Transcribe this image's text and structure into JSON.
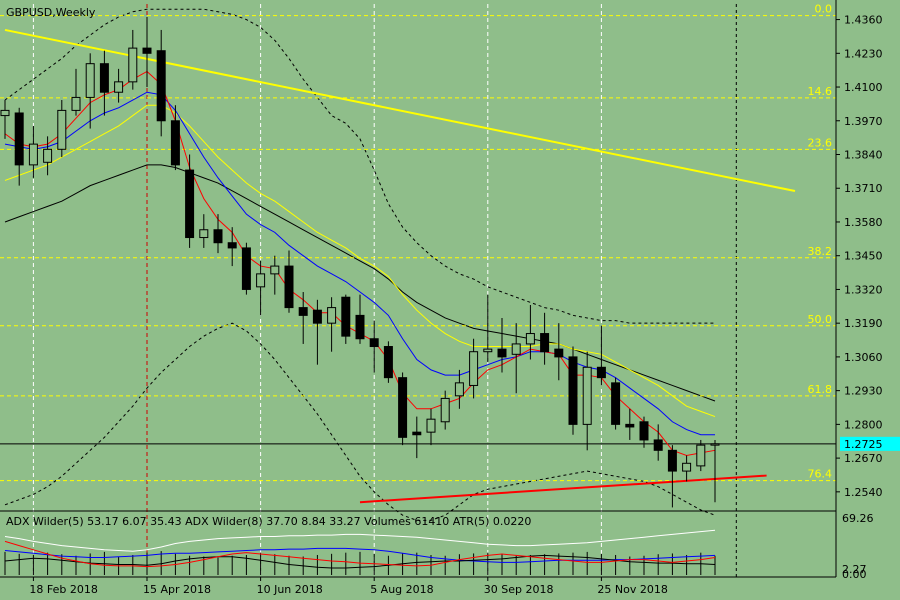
{
  "chart_data": {
    "type": "candlestick",
    "title": "GBPUSD,Weekly",
    "colors": {
      "background": "#8fbe8a",
      "bull_candle": "#8fbe8a",
      "bear_candle": "#000000",
      "ma_fast": "#ff0000",
      "ma_mid": "#0000ff",
      "ma_slow": "#ffff00",
      "bands": "#000000",
      "trendline_top": "#ffff00",
      "trendline_bottom": "#ff0000",
      "fib_lines": "#ffff00",
      "current_price": "#00ffff"
    },
    "ylim": [
      1.247,
      1.442
    ],
    "y_ticks": [
      "1.4360",
      "1.4230",
      "1.4100",
      "1.3970",
      "1.3840",
      "1.3710",
      "1.3580",
      "1.3450",
      "1.3320",
      "1.3190",
      "1.3060",
      "1.2930",
      "1.2800",
      "1.2670",
      "1.2540"
    ],
    "current_price": 1.2725,
    "current_price_label": "1.2725",
    "fib_levels": [
      {
        "label": "0.0",
        "price": 1.4375
      },
      {
        "label": "14.6",
        "price": 1.4058
      },
      {
        "label": "23.6",
        "price": 1.386
      },
      {
        "label": "38.2",
        "price": 1.3442
      },
      {
        "label": "50.0",
        "price": 1.318
      },
      {
        "label": "61.8",
        "price": 1.291
      },
      {
        "label": "76.4",
        "price": 1.2583
      }
    ],
    "x_labels": [
      {
        "label": "18 Feb 2018",
        "week": 1
      },
      {
        "label": "15 Apr 2018",
        "week": 9
      },
      {
        "label": "10 Jun 2018",
        "week": 17
      },
      {
        "label": "5 Aug 2018",
        "week": 25
      },
      {
        "label": "30 Sep 2018",
        "week": 33
      },
      {
        "label": "25 Nov 2018",
        "week": 41
      }
    ],
    "candles": [
      {
        "o": 1.399,
        "h": 1.405,
        "l": 1.39,
        "c": 1.401
      },
      {
        "o": 1.4,
        "h": 1.402,
        "l": 1.372,
        "c": 1.38
      },
      {
        "o": 1.38,
        "h": 1.395,
        "l": 1.375,
        "c": 1.388
      },
      {
        "o": 1.381,
        "h": 1.391,
        "l": 1.376,
        "c": 1.386
      },
      {
        "o": 1.386,
        "h": 1.405,
        "l": 1.383,
        "c": 1.401
      },
      {
        "o": 1.401,
        "h": 1.417,
        "l": 1.399,
        "c": 1.406
      },
      {
        "o": 1.406,
        "h": 1.423,
        "l": 1.394,
        "c": 1.419
      },
      {
        "o": 1.419,
        "h": 1.424,
        "l": 1.399,
        "c": 1.408
      },
      {
        "o": 1.408,
        "h": 1.417,
        "l": 1.404,
        "c": 1.412
      },
      {
        "o": 1.412,
        "h": 1.432,
        "l": 1.409,
        "c": 1.425
      },
      {
        "o": 1.425,
        "h": 1.437,
        "l": 1.41,
        "c": 1.423
      },
      {
        "o": 1.424,
        "h": 1.432,
        "l": 1.391,
        "c": 1.397
      },
      {
        "o": 1.397,
        "h": 1.403,
        "l": 1.378,
        "c": 1.38
      },
      {
        "o": 1.378,
        "h": 1.384,
        "l": 1.348,
        "c": 1.352
      },
      {
        "o": 1.352,
        "h": 1.361,
        "l": 1.348,
        "c": 1.355
      },
      {
        "o": 1.355,
        "h": 1.361,
        "l": 1.346,
        "c": 1.35
      },
      {
        "o": 1.35,
        "h": 1.356,
        "l": 1.341,
        "c": 1.348
      },
      {
        "o": 1.348,
        "h": 1.35,
        "l": 1.33,
        "c": 1.332
      },
      {
        "o": 1.333,
        "h": 1.343,
        "l": 1.322,
        "c": 1.338
      },
      {
        "o": 1.338,
        "h": 1.345,
        "l": 1.33,
        "c": 1.341
      },
      {
        "o": 1.341,
        "h": 1.347,
        "l": 1.323,
        "c": 1.325
      },
      {
        "o": 1.325,
        "h": 1.331,
        "l": 1.311,
        "c": 1.322
      },
      {
        "o": 1.324,
        "h": 1.328,
        "l": 1.303,
        "c": 1.319
      },
      {
        "o": 1.319,
        "h": 1.329,
        "l": 1.308,
        "c": 1.325
      },
      {
        "o": 1.329,
        "h": 1.33,
        "l": 1.311,
        "c": 1.314
      },
      {
        "o": 1.322,
        "h": 1.33,
        "l": 1.311,
        "c": 1.313
      },
      {
        "o": 1.313,
        "h": 1.32,
        "l": 1.3,
        "c": 1.31
      },
      {
        "o": 1.31,
        "h": 1.312,
        "l": 1.296,
        "c": 1.298
      },
      {
        "o": 1.298,
        "h": 1.3,
        "l": 1.272,
        "c": 1.275
      },
      {
        "o": 1.277,
        "h": 1.283,
        "l": 1.267,
        "c": 1.276
      },
      {
        "o": 1.277,
        "h": 1.286,
        "l": 1.272,
        "c": 1.282
      },
      {
        "o": 1.281,
        "h": 1.293,
        "l": 1.278,
        "c": 1.29
      },
      {
        "o": 1.291,
        "h": 1.301,
        "l": 1.286,
        "c": 1.296
      },
      {
        "o": 1.295,
        "h": 1.313,
        "l": 1.29,
        "c": 1.308
      },
      {
        "o": 1.308,
        "h": 1.33,
        "l": 1.304,
        "c": 1.309
      },
      {
        "o": 1.309,
        "h": 1.321,
        "l": 1.3,
        "c": 1.306
      },
      {
        "o": 1.307,
        "h": 1.319,
        "l": 1.292,
        "c": 1.311
      },
      {
        "o": 1.311,
        "h": 1.326,
        "l": 1.305,
        "c": 1.315
      },
      {
        "o": 1.315,
        "h": 1.323,
        "l": 1.303,
        "c": 1.308
      },
      {
        "o": 1.309,
        "h": 1.319,
        "l": 1.297,
        "c": 1.306
      },
      {
        "o": 1.306,
        "h": 1.31,
        "l": 1.276,
        "c": 1.28
      },
      {
        "o": 1.28,
        "h": 1.308,
        "l": 1.27,
        "c": 1.302
      },
      {
        "o": 1.302,
        "h": 1.318,
        "l": 1.295,
        "c": 1.298
      },
      {
        "o": 1.296,
        "h": 1.298,
        "l": 1.278,
        "c": 1.28
      },
      {
        "o": 1.28,
        "h": 1.286,
        "l": 1.274,
        "c": 1.279
      },
      {
        "o": 1.281,
        "h": 1.283,
        "l": 1.271,
        "c": 1.274
      },
      {
        "o": 1.274,
        "h": 1.28,
        "l": 1.266,
        "c": 1.27
      },
      {
        "o": 1.27,
        "h": 1.272,
        "l": 1.248,
        "c": 1.262
      },
      {
        "o": 1.262,
        "h": 1.268,
        "l": 1.258,
        "c": 1.265
      },
      {
        "o": 1.264,
        "h": 1.274,
        "l": 1.262,
        "c": 1.272
      },
      {
        "o": 1.272,
        "h": 1.274,
        "l": 1.25,
        "c": 1.2725
      }
    ],
    "ma_fast": [
      1.392,
      1.388,
      1.387,
      1.388,
      1.392,
      1.398,
      1.404,
      1.407,
      1.409,
      1.413,
      1.416,
      1.411,
      1.397,
      1.379,
      1.367,
      1.359,
      1.354,
      1.345,
      1.341,
      1.34,
      1.332,
      1.328,
      1.323,
      1.323,
      1.318,
      1.315,
      1.312,
      1.305,
      1.292,
      1.286,
      1.286,
      1.288,
      1.29,
      1.296,
      1.301,
      1.303,
      1.306,
      1.309,
      1.308,
      1.307,
      1.299,
      1.299,
      1.298,
      1.291,
      1.286,
      1.281,
      1.277,
      1.27,
      1.268,
      1.269,
      1.27
    ],
    "ma_mid": [
      1.388,
      1.387,
      1.386,
      1.387,
      1.389,
      1.393,
      1.397,
      1.4,
      1.402,
      1.405,
      1.408,
      1.407,
      1.401,
      1.392,
      1.383,
      1.375,
      1.368,
      1.361,
      1.357,
      1.354,
      1.349,
      1.345,
      1.341,
      1.338,
      1.335,
      1.331,
      1.327,
      1.322,
      1.313,
      1.305,
      1.301,
      1.299,
      1.299,
      1.301,
      1.303,
      1.305,
      1.306,
      1.308,
      1.308,
      1.307,
      1.304,
      1.302,
      1.301,
      1.298,
      1.294,
      1.29,
      1.286,
      1.281,
      1.278,
      1.276,
      1.276
    ],
    "ma_slow": [
      1.374,
      1.376,
      1.378,
      1.38,
      1.383,
      1.386,
      1.389,
      1.392,
      1.395,
      1.399,
      1.403,
      1.403,
      1.4,
      1.395,
      1.389,
      1.383,
      1.378,
      1.373,
      1.369,
      1.366,
      1.362,
      1.358,
      1.354,
      1.351,
      1.348,
      1.344,
      1.341,
      1.337,
      1.33,
      1.324,
      1.319,
      1.315,
      1.312,
      1.31,
      1.31,
      1.31,
      1.31,
      1.31,
      1.311,
      1.311,
      1.309,
      1.308,
      1.307,
      1.304,
      1.301,
      1.298,
      1.295,
      1.291,
      1.287,
      1.285,
      1.283
    ],
    "bands_mid": [
      1.358,
      1.36,
      1.362,
      1.364,
      1.366,
      1.369,
      1.372,
      1.374,
      1.376,
      1.378,
      1.38,
      1.38,
      1.379,
      1.377,
      1.375,
      1.373,
      1.37,
      1.367,
      1.364,
      1.361,
      1.358,
      1.355,
      1.352,
      1.349,
      1.346,
      1.343,
      1.34,
      1.336,
      1.331,
      1.327,
      1.324,
      1.321,
      1.319,
      1.317,
      1.316,
      1.315,
      1.314,
      1.313,
      1.312,
      1.311,
      1.309,
      1.307,
      1.305,
      1.303,
      1.301,
      1.299,
      1.297,
      1.295,
      1.293,
      1.291,
      1.289
    ],
    "bands_upper": [
      1.405,
      1.409,
      1.413,
      1.417,
      1.421,
      1.426,
      1.43,
      1.434,
      1.437,
      1.439,
      1.44,
      1.44,
      1.44,
      1.44,
      1.44,
      1.439,
      1.438,
      1.436,
      1.433,
      1.428,
      1.421,
      1.413,
      1.406,
      1.399,
      1.396,
      1.39,
      1.378,
      1.365,
      1.356,
      1.35,
      1.345,
      1.341,
      1.338,
      1.336,
      1.333,
      1.331,
      1.329,
      1.327,
      1.325,
      1.324,
      1.322,
      1.321,
      1.32,
      1.32,
      1.319,
      1.319,
      1.319,
      1.319,
      1.319,
      1.319,
      1.319
    ],
    "bands_lower": [
      1.249,
      1.251,
      1.253,
      1.256,
      1.26,
      1.265,
      1.27,
      1.275,
      1.281,
      1.287,
      1.294,
      1.3,
      1.305,
      1.31,
      1.314,
      1.317,
      1.319,
      1.316,
      1.311,
      1.305,
      1.298,
      1.291,
      1.284,
      1.276,
      1.268,
      1.26,
      1.254,
      1.249,
      1.245,
      1.243,
      1.243,
      1.245,
      1.249,
      1.253,
      1.255,
      1.256,
      1.257,
      1.258,
      1.259,
      1.26,
      1.261,
      1.262,
      1.261,
      1.26,
      1.259,
      1.258,
      1.256,
      1.253,
      1.25,
      1.247,
      1.245
    ],
    "trendline_top": {
      "from": {
        "week": 0,
        "price": 1.432
      },
      "to": {
        "week": 50,
        "price": 1.368
      }
    },
    "trendline_bottom": {
      "from": {
        "week": 25,
        "price": 1.25
      },
      "to": {
        "week": 48,
        "price": 1.2595
      }
    },
    "indicator_panel": {
      "label": "ADX Wilder(5) 53.17 6.07 35.43 ADX Wilder(8) 37.70 8.84 33.27 Volumes 61410 ATR(5) 0.0220",
      "y_ticks": [
        "69.26",
        "2.27",
        "0.00"
      ],
      "ylim": [
        0,
        70
      ],
      "adx": [
        55,
        52,
        48,
        45,
        42,
        40,
        38,
        36,
        35,
        34,
        36,
        40,
        45,
        48,
        50,
        52,
        53,
        54,
        55,
        55,
        56,
        56,
        57,
        57,
        58,
        58,
        57,
        56,
        55,
        54,
        52,
        50,
        48,
        46,
        44,
        43,
        42,
        42,
        43,
        44,
        45,
        46,
        48,
        50,
        52,
        54,
        56,
        58,
        60,
        62,
        64
      ],
      "plus_di": [
        35,
        33,
        31,
        29,
        27,
        26,
        25,
        25,
        26,
        27,
        28,
        30,
        31,
        31,
        32,
        33,
        34,
        35,
        36,
        36,
        37,
        37,
        38,
        38,
        38,
        37,
        36,
        34,
        31,
        28,
        25,
        23,
        21,
        20,
        19,
        18,
        18,
        19,
        20,
        21,
        21,
        21,
        21,
        22,
        22,
        23,
        24,
        25,
        26,
        27,
        28
      ],
      "minus_di": [
        20,
        22,
        24,
        23,
        21,
        19,
        17,
        16,
        15,
        15,
        14,
        16,
        20,
        23,
        25,
        26,
        26,
        24,
        21,
        18,
        15,
        13,
        11,
        10,
        10,
        11,
        12,
        14,
        16,
        18,
        19,
        20,
        20,
        21,
        22,
        23,
        25,
        27,
        28,
        27,
        26,
        25,
        23,
        21,
        19,
        18,
        17,
        17,
        16,
        16,
        15
      ],
      "red_line": [
        48,
        42,
        36,
        30,
        24,
        20,
        16,
        14,
        13,
        13,
        12,
        13,
        15,
        18,
        22,
        26,
        30,
        32,
        30,
        28,
        26,
        24,
        22,
        20,
        19,
        17,
        16,
        15,
        14,
        13,
        14,
        18,
        22,
        25,
        28,
        30,
        28,
        26,
        24,
        22,
        20,
        18,
        18,
        20,
        22,
        22,
        20,
        18,
        20,
        22,
        25
      ],
      "volumes": [
        60,
        55,
        52,
        58,
        54,
        50,
        56,
        60,
        48,
        52,
        58,
        62,
        55,
        50,
        48,
        45,
        50,
        52,
        58,
        54,
        50,
        48,
        52,
        55,
        58,
        60,
        55,
        50,
        56,
        58,
        52,
        50,
        54,
        56,
        58,
        55,
        50,
        52,
        54,
        56,
        58,
        60,
        55,
        52,
        48,
        50,
        54,
        56,
        52,
        58,
        50
      ]
    }
  }
}
